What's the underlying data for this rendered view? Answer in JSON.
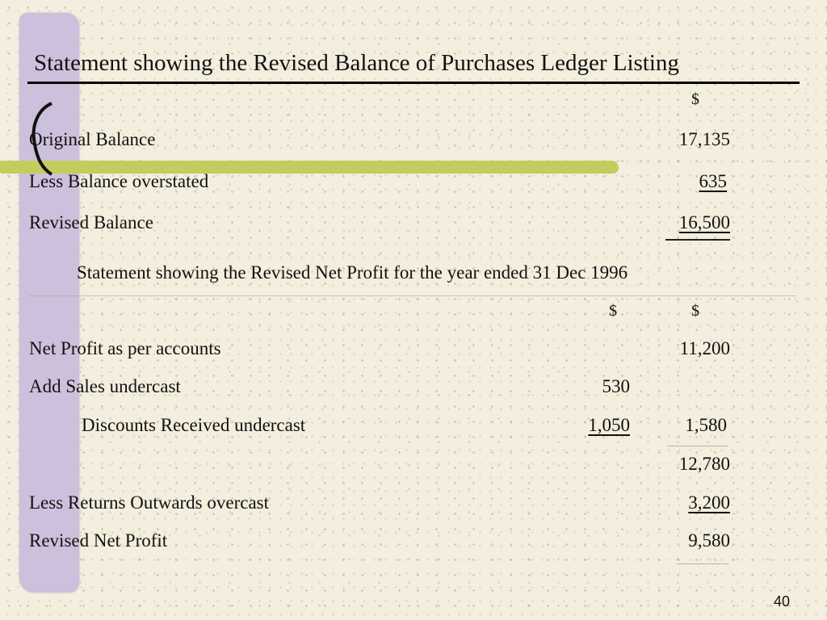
{
  "slide": {
    "title": "Statement showing the Revised Balance of Purchases Ledger Listing",
    "page_number": "40"
  },
  "ledger": {
    "currency_header": "$",
    "rows": [
      {
        "label": "Original Balance",
        "amount": "17,135"
      },
      {
        "label": "Less Balance overstated",
        "amount": "635"
      },
      {
        "label": "Revised Balance",
        "amount": "16,500"
      }
    ]
  },
  "profit": {
    "title": "Statement showing the Revised Net Profit for the year ended 31 Dec 1996",
    "col1_header": "$",
    "col2_header": "$",
    "rows": [
      {
        "label": "Net Profit as per accounts",
        "col1": "",
        "col2": "11,200"
      },
      {
        "label": "Add  Sales undercast",
        "col1": "530",
        "col2": ""
      },
      {
        "label": "Discounts Received undercast",
        "col1": "1,050",
        "col2": "1,580"
      },
      {
        "label": "",
        "col1": "",
        "col2": "12,780"
      },
      {
        "label": "Less  Returns Outwards overcast",
        "col1": "",
        "col2": "3,200"
      },
      {
        "label": "Revised Net Profit",
        "col1": "",
        "col2": "9,580"
      }
    ]
  },
  "theme": {
    "background": "#f3eedd",
    "purple_bar": "#cdc0dc",
    "green_stroke": "#c4cc5e"
  }
}
